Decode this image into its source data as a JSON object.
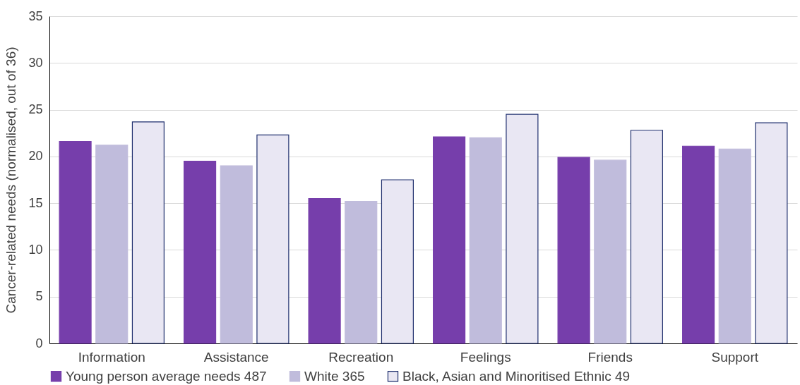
{
  "chart_data": {
    "type": "bar",
    "ylabel": "Cancer-related needs (normalised, out of 36)",
    "categories": [
      "Information",
      "Assistance",
      "Recreation",
      "Feelings",
      "Friends",
      "Support"
    ],
    "series": [
      {
        "name": "Young person average needs 487",
        "color": "#763eab",
        "values": [
          21.6,
          19.5,
          15.5,
          22.1,
          19.9,
          21.1
        ]
      },
      {
        "name": "White 365",
        "color": "#c0bcdc",
        "values": [
          21.2,
          19.0,
          15.2,
          22.0,
          19.6,
          20.8
        ]
      },
      {
        "name": "Black, Asian and Minoritised Ethnic 49",
        "color": "#e9e7f3",
        "values": [
          23.7,
          22.3,
          17.5,
          24.5,
          22.8,
          23.6
        ]
      }
    ],
    "ylim": [
      0,
      35
    ],
    "yticks": [
      0,
      5,
      10,
      15,
      20,
      25,
      30,
      35
    ],
    "grid": "y",
    "legend": "bottom"
  }
}
